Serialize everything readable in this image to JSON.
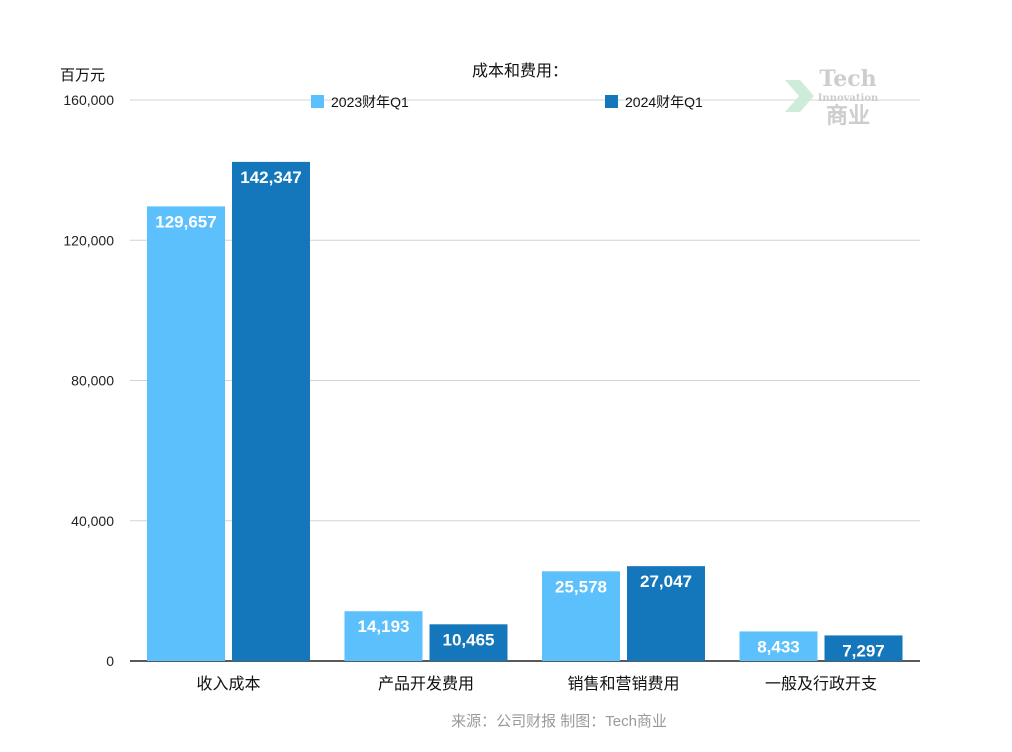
{
  "chart_data": {
    "type": "bar",
    "title": "成本和费用：",
    "ylabel": "百万元",
    "xlabel": "",
    "ylim": [
      0,
      160000
    ],
    "yticks": [
      0,
      40000,
      80000,
      120000,
      160000
    ],
    "ytick_labels": [
      "0",
      "40,000",
      "80,000",
      "120,000",
      "160,000"
    ],
    "grid": true,
    "legend_position": "top",
    "categories": [
      "收入成本",
      "产品开发费用",
      "销售和营销费用",
      "一般及行政开支"
    ],
    "series": [
      {
        "name": "2023财年Q1",
        "color": "#5bc0fb",
        "values": [
          129657,
          14193,
          25578,
          8433
        ],
        "labels": [
          "129,657",
          "14,193",
          "25,578",
          "8,433"
        ]
      },
      {
        "name": "2024财年Q1",
        "color": "#1476bb",
        "values": [
          142347,
          10465,
          27047,
          7297
        ],
        "labels": [
          "142,347",
          "10,465",
          "27,047",
          "7,297"
        ]
      }
    ]
  },
  "source_note": "来源：公司财报 制图：Tech商业",
  "watermark": {
    "line1": "Tech",
    "line2": "Innovation",
    "line3": "商业",
    "icon": "chevron-logo-icon",
    "color": "#c8c8c8",
    "accent": "#c9ecd4"
  }
}
